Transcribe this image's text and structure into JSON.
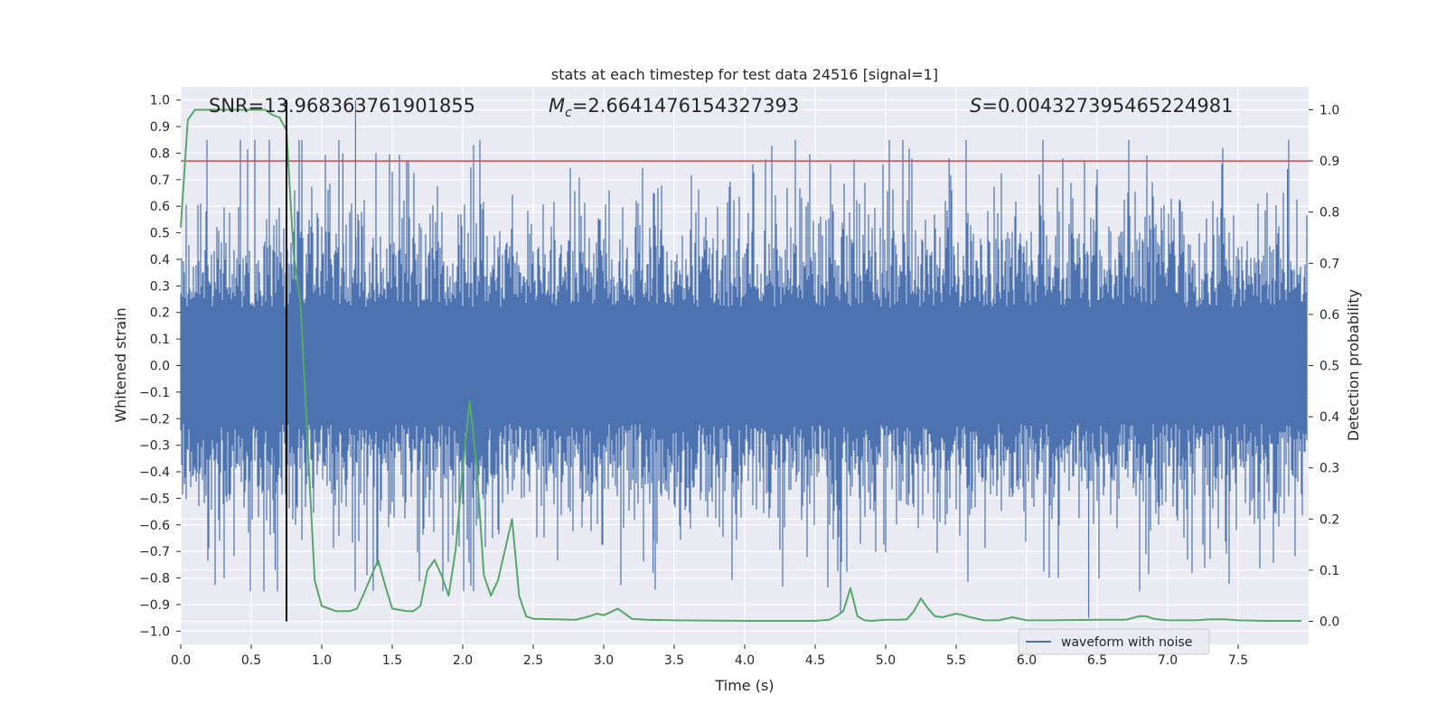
{
  "chart_data": {
    "type": "line",
    "title": "stats at each timestep for test data 24516 [signal=1]",
    "xlabel": "Time (s)",
    "ylabel_left": "Whitened strain",
    "ylabel_right": "Detection probability",
    "xlim": [
      0.0,
      8.0
    ],
    "ylim_left": [
      -1.05,
      1.05
    ],
    "ylim_right": [
      -0.045,
      1.045
    ],
    "xticks": [
      "0.0",
      "0.5",
      "1.0",
      "1.5",
      "2.0",
      "2.5",
      "3.0",
      "3.5",
      "4.0",
      "4.5",
      "5.0",
      "5.5",
      "6.0",
      "6.5",
      "7.0",
      "7.5"
    ],
    "yticks_left": [
      "1.0",
      "0.9",
      "0.8",
      "0.7",
      "0.6",
      "0.5",
      "0.4",
      "0.3",
      "0.2",
      "0.1",
      "0.0",
      "-0.1",
      "-0.2",
      "-0.3",
      "-0.4",
      "-0.5",
      "-0.6",
      "-0.7",
      "-0.8",
      "-0.9",
      "-1.0"
    ],
    "yticks_right": [
      "1.0",
      "0.9",
      "0.8",
      "0.7",
      "0.6",
      "0.5",
      "0.4",
      "0.3",
      "0.2",
      "0.1",
      "0.0"
    ],
    "grid": true,
    "annotations": {
      "snr": "SNR=13.968363761901855",
      "mc_symbol": "M",
      "mc_sub": "c",
      "mc_value": "=2.6641476154327393",
      "s_symbol": "S",
      "s_value": "=0.004327395465224981"
    },
    "threshold_right": 0.9,
    "marker_time": 0.75,
    "series": [
      {
        "name": "waveform with noise",
        "color": "#4c72b0",
        "axis": "left",
        "t_start": 0.0,
        "t_end": 7.99,
        "envelope_typical": 0.22,
        "envelope_max": 1.0,
        "notable_peaks": [
          {
            "x": 1.24,
            "y": 1.0
          },
          {
            "x": 1.15,
            "y": 0.8
          },
          {
            "x": 0.67,
            "y": -0.77
          },
          {
            "x": 2.06,
            "y": -0.1
          },
          {
            "x": 3.35,
            "y": -0.78
          },
          {
            "x": 4.68,
            "y": -0.93
          },
          {
            "x": 6.44,
            "y": -0.95
          },
          {
            "x": 5.45,
            "y": 0.78
          },
          {
            "x": 7.85,
            "y": 0.74
          }
        ]
      },
      {
        "color": "#55a868",
        "axis": "right",
        "x": [
          0.0,
          0.05,
          0.1,
          0.15,
          0.2,
          0.3,
          0.4,
          0.5,
          0.6,
          0.65,
          0.7,
          0.75,
          0.8,
          0.85,
          0.9,
          0.95,
          1.0,
          1.1,
          1.15,
          1.2,
          1.25,
          1.3,
          1.4,
          1.45,
          1.5,
          1.6,
          1.65,
          1.7,
          1.75,
          1.8,
          1.85,
          1.9,
          1.95,
          2.0,
          2.05,
          2.1,
          2.15,
          2.2,
          2.25,
          2.3,
          2.35,
          2.4,
          2.45,
          2.5,
          2.8,
          2.9,
          2.95,
          3.0,
          3.05,
          3.1,
          3.2,
          3.3,
          3.5,
          4.0,
          4.5,
          4.6,
          4.65,
          4.7,
          4.75,
          4.8,
          4.85,
          4.9,
          5.0,
          5.1,
          5.15,
          5.2,
          5.25,
          5.3,
          5.35,
          5.4,
          5.5,
          5.55,
          5.6,
          5.7,
          5.8,
          5.9,
          6.0,
          6.1,
          6.2,
          6.5,
          6.7,
          6.8,
          6.85,
          6.9,
          7.0,
          7.1,
          7.2,
          7.3,
          7.4,
          7.5,
          7.7,
          7.95
        ],
        "y": [
          0.77,
          0.98,
          1.0,
          1.0,
          1.0,
          1.0,
          1.0,
          1.0,
          1.0,
          0.99,
          0.985,
          0.96,
          0.72,
          0.62,
          0.35,
          0.08,
          0.03,
          0.02,
          0.02,
          0.02,
          0.025,
          0.055,
          0.12,
          0.07,
          0.025,
          0.02,
          0.02,
          0.03,
          0.1,
          0.12,
          0.09,
          0.05,
          0.14,
          0.3,
          0.43,
          0.3,
          0.09,
          0.05,
          0.08,
          0.14,
          0.2,
          0.05,
          0.01,
          0.005,
          0.003,
          0.01,
          0.015,
          0.012,
          0.018,
          0.025,
          0.005,
          0.003,
          0.002,
          0.001,
          0.001,
          0.003,
          0.01,
          0.02,
          0.065,
          0.01,
          0.002,
          0.001,
          0.003,
          0.003,
          0.004,
          0.02,
          0.045,
          0.025,
          0.01,
          0.008,
          0.015,
          0.012,
          0.008,
          0.002,
          0.002,
          0.008,
          0.002,
          0.002,
          0.002,
          0.003,
          0.003,
          0.01,
          0.01,
          0.005,
          0.002,
          0.002,
          0.002,
          0.004,
          0.004,
          0.002,
          0.001,
          0.001
        ]
      }
    ],
    "legend": {
      "placement": "lower-right",
      "entries": [
        "waveform with noise"
      ]
    }
  },
  "colors": {
    "plot_bg": "#eaeaf2",
    "grid": "#ffffff",
    "threshold": "#c44e52",
    "marker": "#000000"
  }
}
